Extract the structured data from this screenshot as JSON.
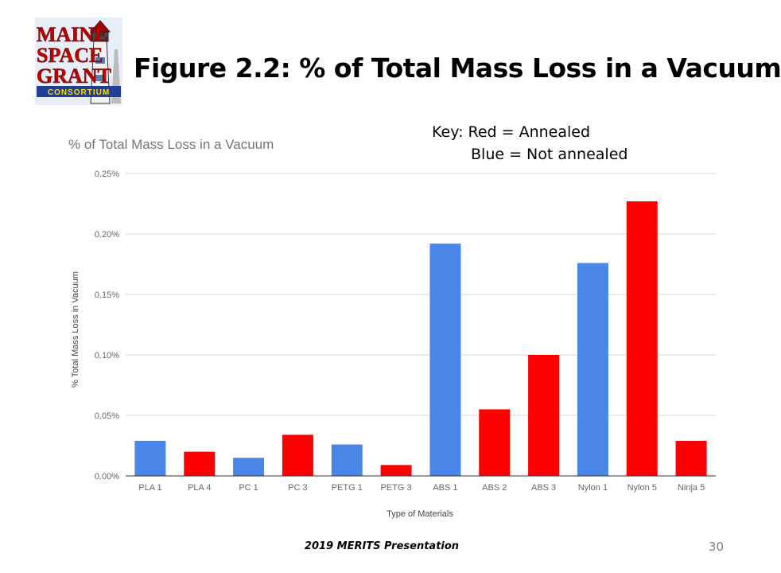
{
  "slide": {
    "title": "Figure 2.2: % of Total Mass Loss in a Vacuum",
    "key_line1": "Key: Red = Annealed",
    "key_line2": "Blue = Not annealed",
    "footer": "2019 MERITS Presentation",
    "page_number": "30"
  },
  "logo": {
    "text_lines": [
      "MAINE",
      "SPACE",
      "GRANT",
      "CONSORTIUM"
    ],
    "icon": "lighthouse-logo-icon"
  },
  "colors": {
    "annealed": "#ff0000",
    "not_annealed": "#4a86e8",
    "grid": "#d9d9d9",
    "axis_text": "#666666",
    "chart_title": "#757575"
  },
  "chart_data": {
    "type": "bar",
    "title": "% of Total Mass Loss in a Vacuum",
    "xlabel": "Type of Materials",
    "ylabel": "% Total Mass Loss in Vacuum",
    "ylim": [
      0,
      0.25
    ],
    "yticks": [
      "0.00%",
      "0.05%",
      "0.10%",
      "0.15%",
      "0.20%",
      "0.25%"
    ],
    "ytick_values": [
      0,
      0.05,
      0.1,
      0.15,
      0.2,
      0.25
    ],
    "grid": true,
    "legend": "none",
    "categories": [
      "PLA 1",
      "PLA 4",
      "PC 1",
      "PC 3",
      "PETG 1",
      "PETG 3",
      "ABS 1",
      "ABS 2",
      "ABS 3",
      "Nylon 1",
      "Nylon 5",
      "Ninja 5"
    ],
    "values": [
      0.029,
      0.02,
      0.015,
      0.034,
      0.026,
      0.009,
      0.192,
      0.055,
      0.1,
      0.176,
      0.227,
      0.029
    ],
    "bar_colors": [
      "#4a86e8",
      "#ff0000",
      "#4a86e8",
      "#ff0000",
      "#4a86e8",
      "#ff0000",
      "#4a86e8",
      "#ff0000",
      "#ff0000",
      "#4a86e8",
      "#ff0000",
      "#ff0000"
    ]
  }
}
